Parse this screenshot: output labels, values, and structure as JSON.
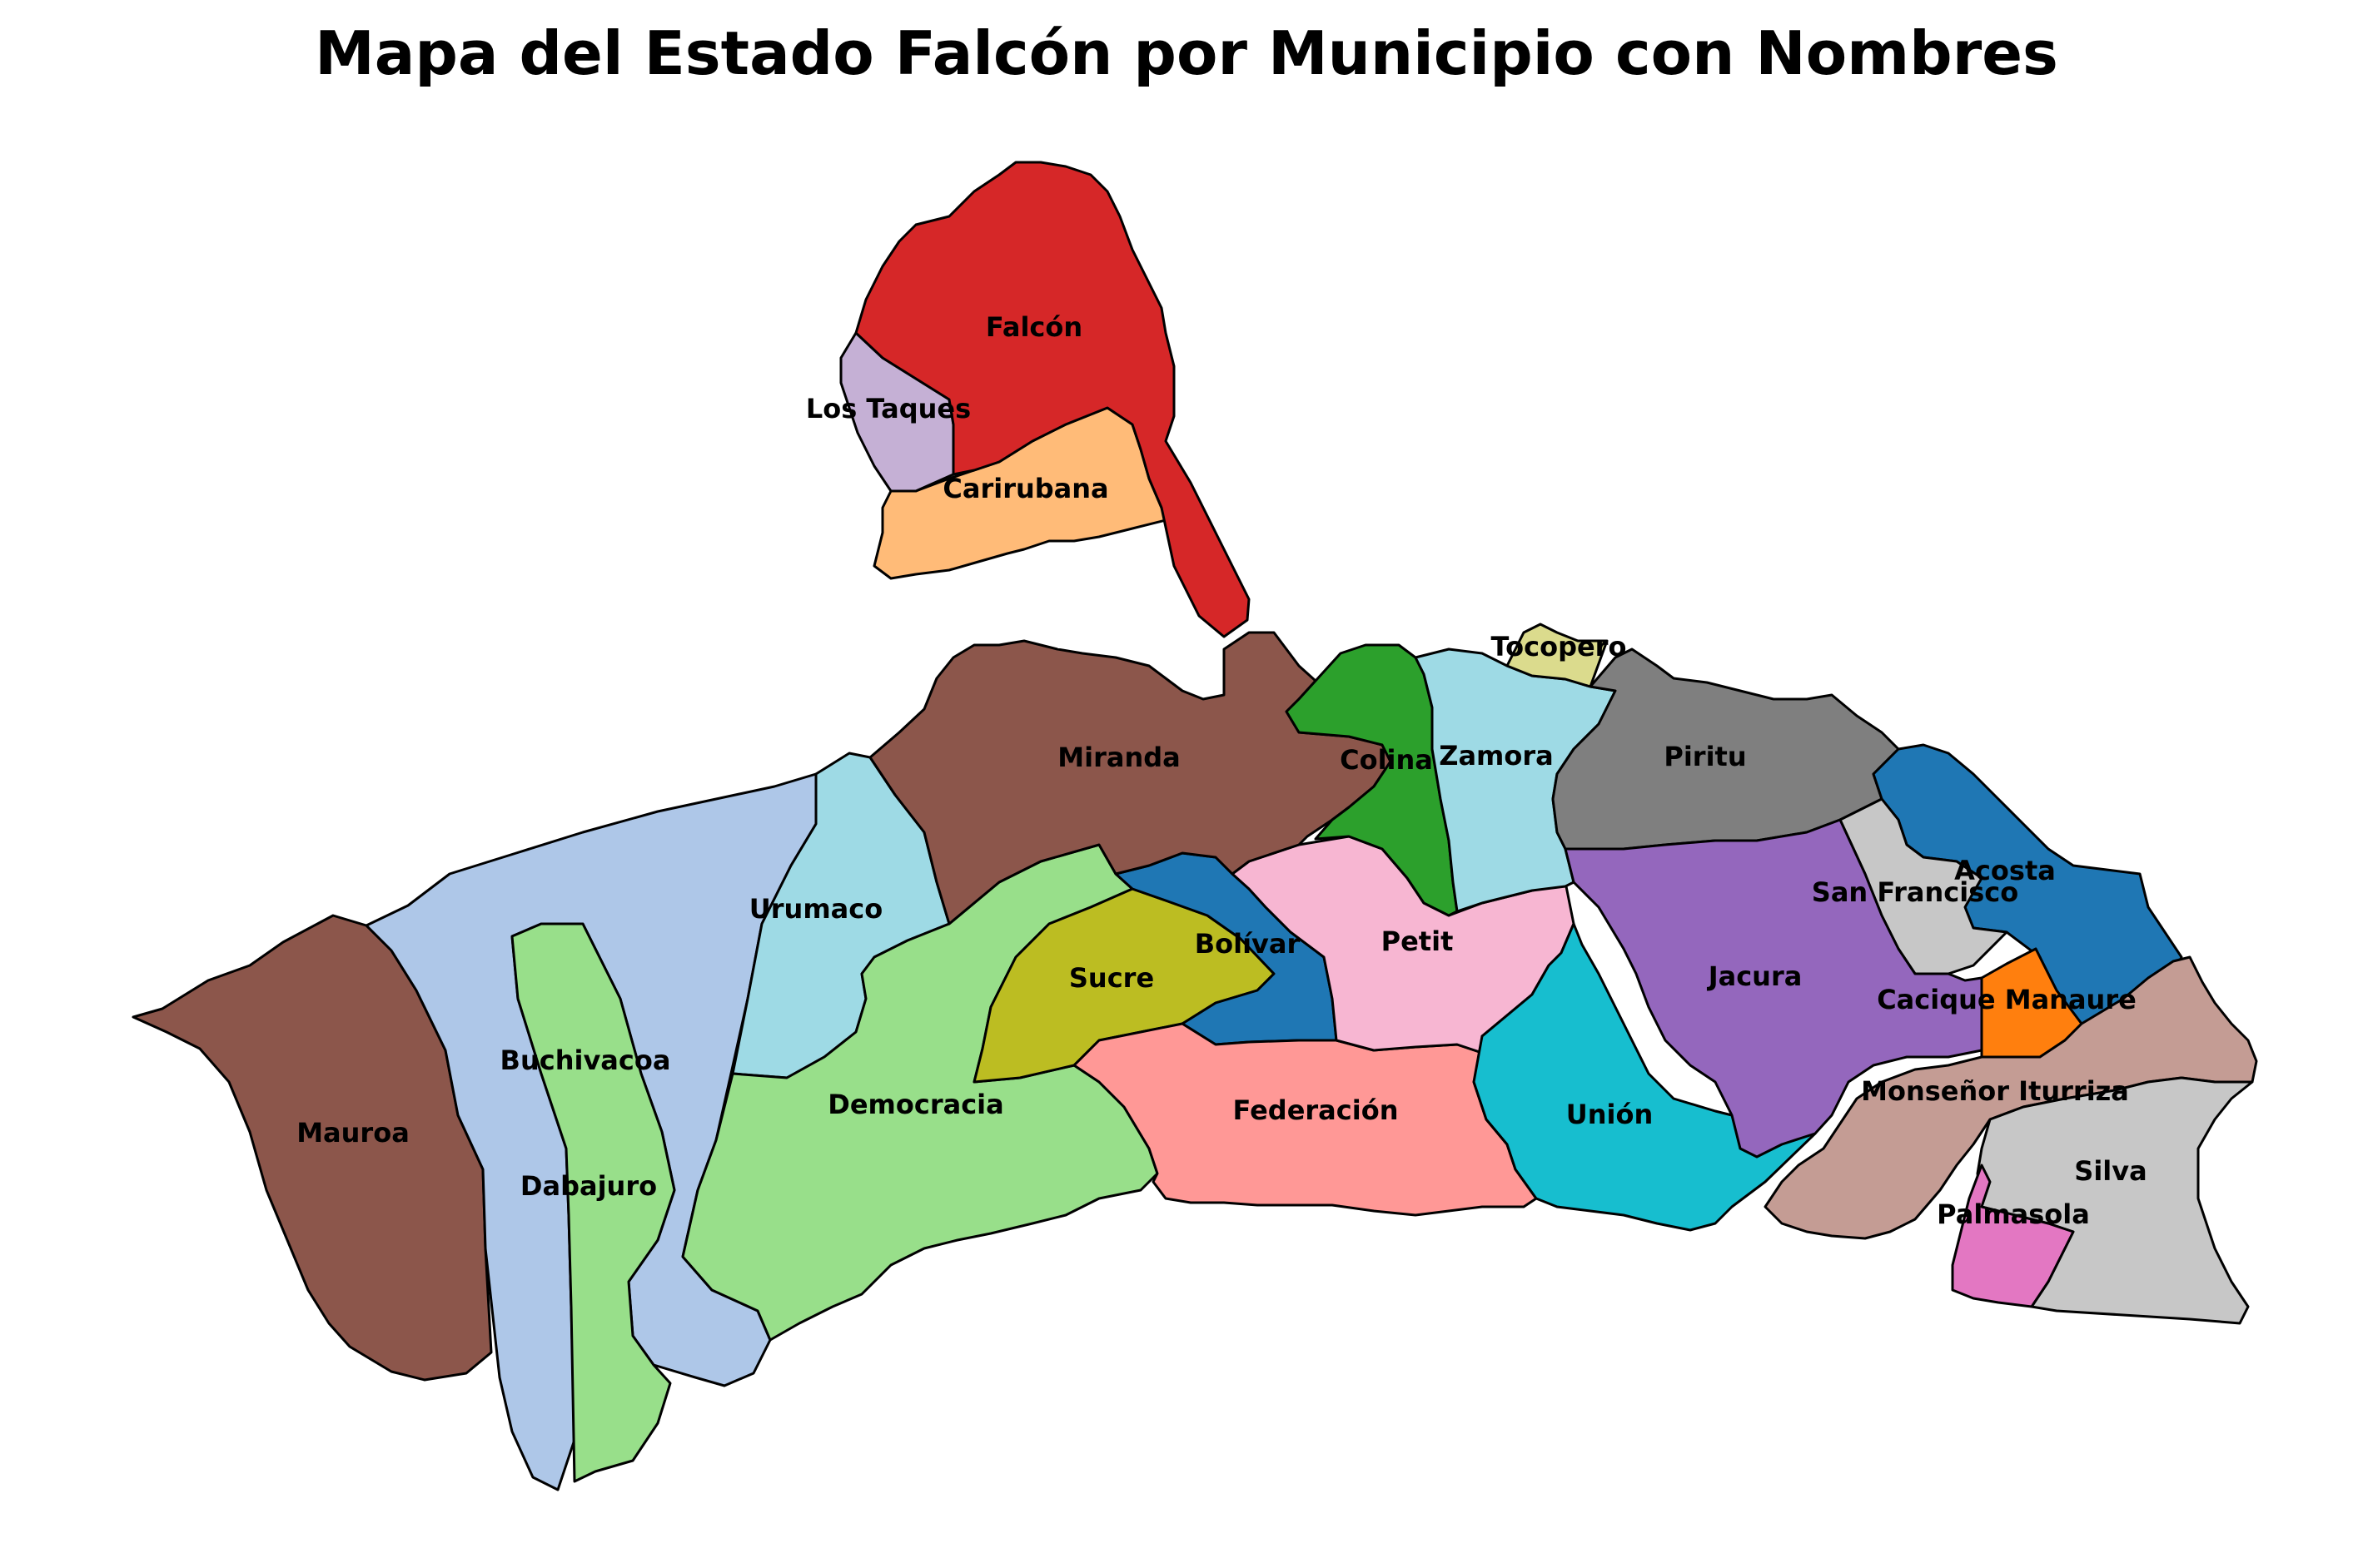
{
  "title": "Mapa del Estado Falcón por Municipio con Nombres",
  "municipalities": [
    {
      "id": "falcon",
      "name": "Falcón",
      "color": "#d62728"
    },
    {
      "id": "los-taques",
      "name": "Los Taques",
      "color": "#c5b0d5"
    },
    {
      "id": "carirubana",
      "name": "Carirubana",
      "color": "#ffbb78"
    },
    {
      "id": "miranda",
      "name": "Miranda",
      "color": "#8c564b"
    },
    {
      "id": "colina",
      "name": "Colina",
      "color": "#2ca02c"
    },
    {
      "id": "tocopero",
      "name": "Tocopero",
      "color": "#dbdb8d"
    },
    {
      "id": "zamora",
      "name": "Zamora",
      "color": "#9edae5"
    },
    {
      "id": "piritu",
      "name": "Piritu",
      "color": "#7f7f7f"
    },
    {
      "id": "acosta",
      "name": "Acosta",
      "color": "#1f77b4"
    },
    {
      "id": "san-francisco",
      "name": "San Francisco",
      "color": "#c7c7c7"
    },
    {
      "id": "cacique-manaure",
      "name": "Cacique Manaure",
      "color": "#ff7f0e"
    },
    {
      "id": "jacura",
      "name": "Jacura",
      "color": "#9467bd"
    },
    {
      "id": "monsenor-iturriza",
      "name": "Monseñor Iturriza",
      "color": "#c49c94"
    },
    {
      "id": "silva",
      "name": "Silva",
      "color": "#c7c7c7"
    },
    {
      "id": "palmasola",
      "name": "Palmasola",
      "color": "#e377c2"
    },
    {
      "id": "union",
      "name": "Unión",
      "color": "#17becf"
    },
    {
      "id": "federacion",
      "name": "Federación",
      "color": "#ff9896"
    },
    {
      "id": "petit",
      "name": "Petit",
      "color": "#f7b6d2"
    },
    {
      "id": "bolivar",
      "name": "Bolívar",
      "color": "#1f77b4"
    },
    {
      "id": "sucre",
      "name": "Sucre",
      "color": "#bcbd22"
    },
    {
      "id": "democracia",
      "name": "Democracia",
      "color": "#98df8a"
    },
    {
      "id": "urumaco",
      "name": "Urumaco",
      "color": "#9edae5"
    },
    {
      "id": "buchivacoa",
      "name": "Buchivacoa",
      "color": "#aec7e8"
    },
    {
      "id": "dabajuro",
      "name": "Dabajuro",
      "color": "#98df8a"
    },
    {
      "id": "mauroa",
      "name": "Mauroa",
      "color": "#8c564b"
    }
  ]
}
